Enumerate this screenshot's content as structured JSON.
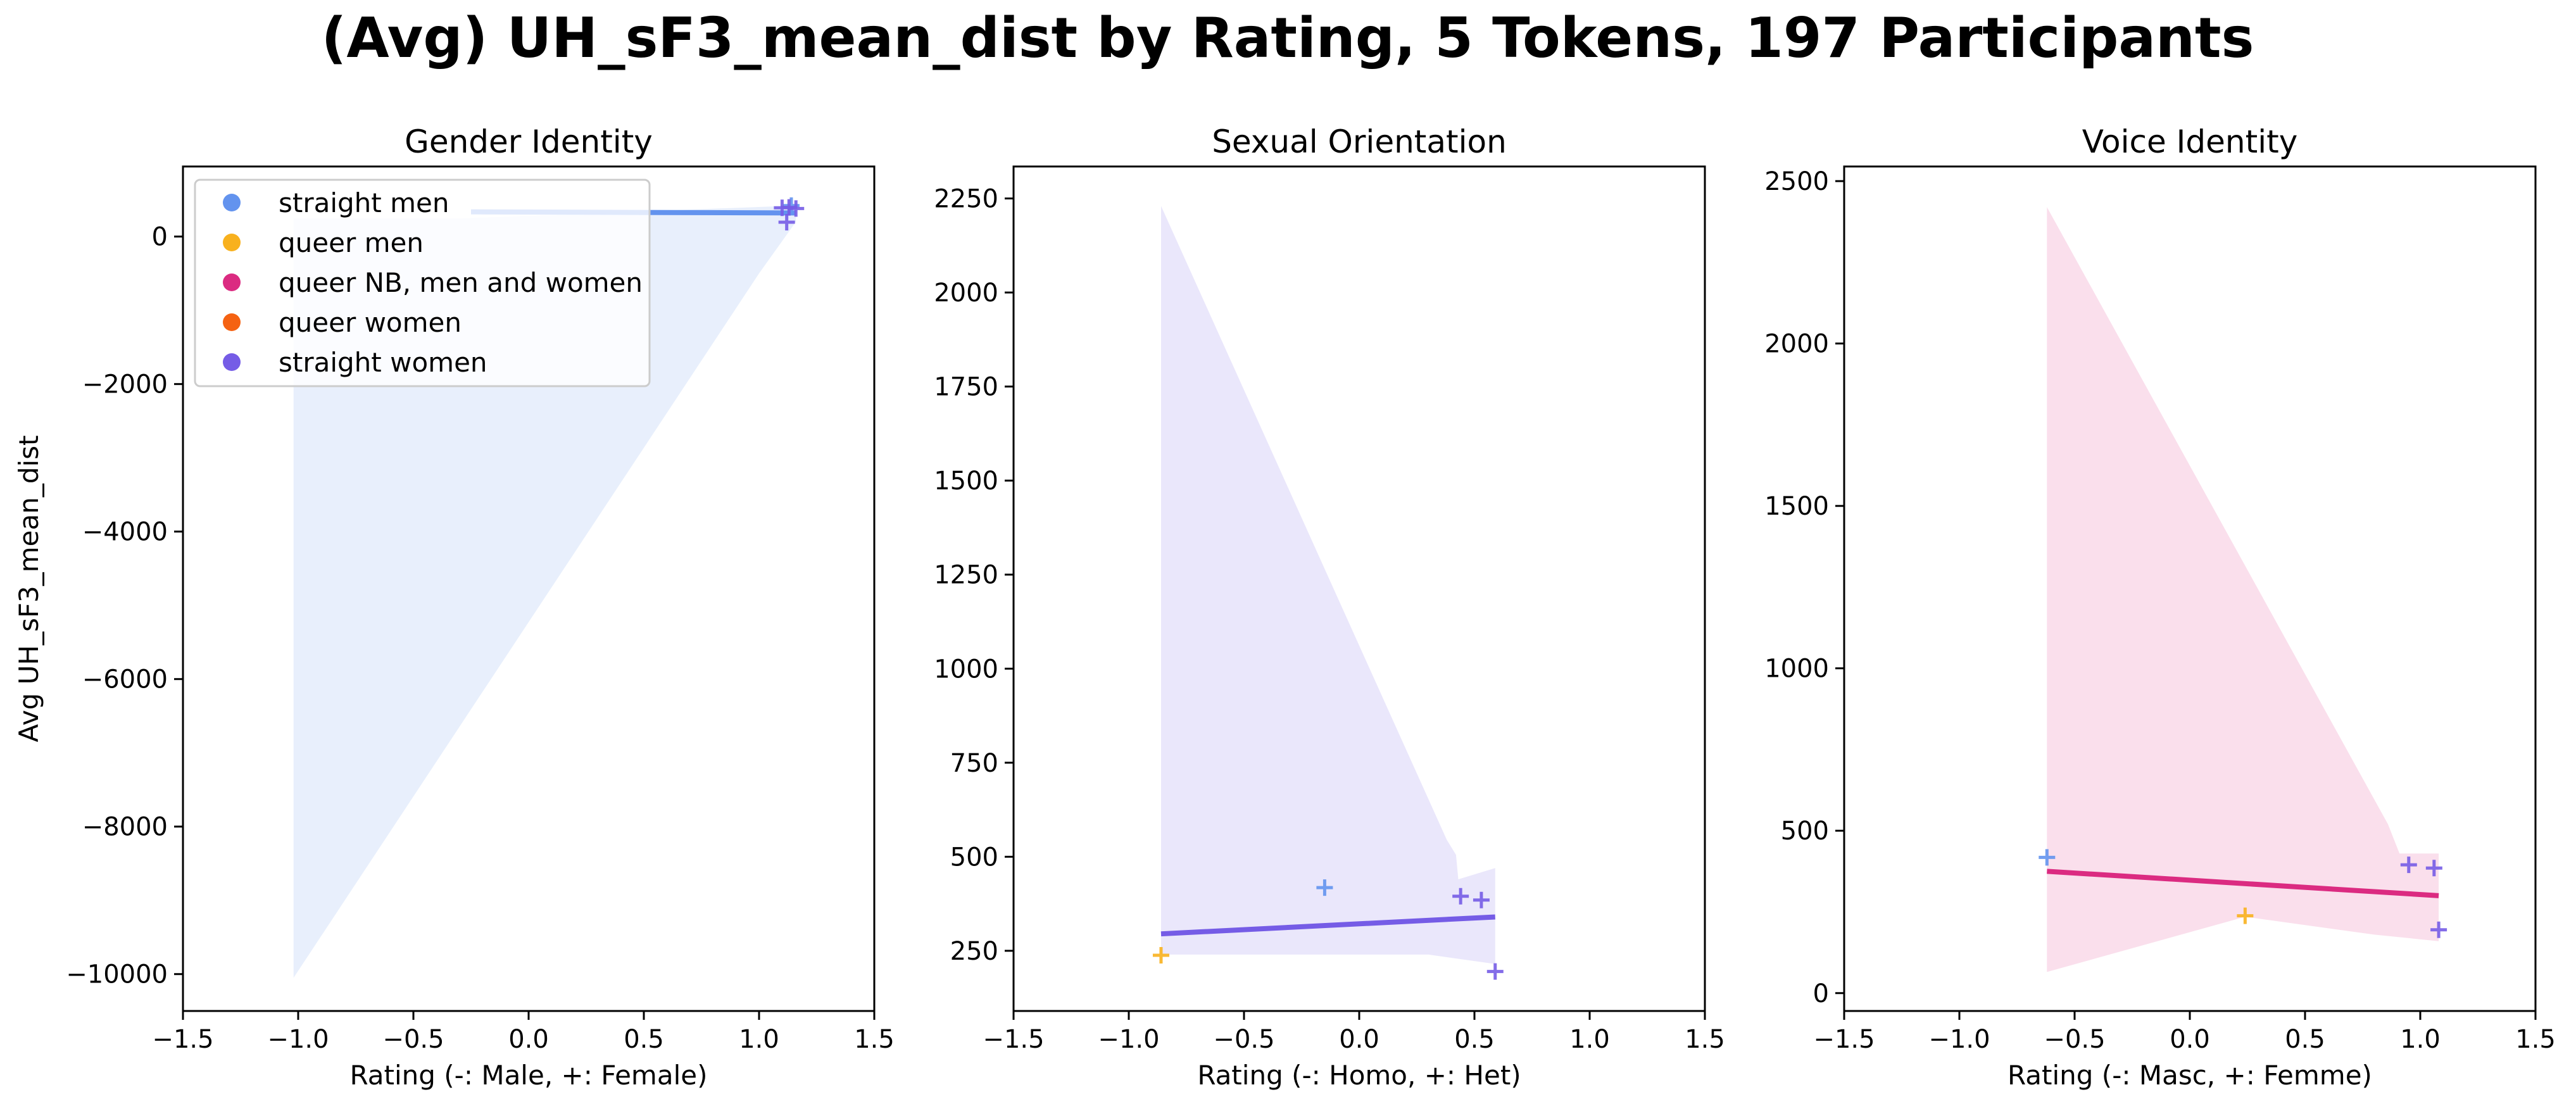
{
  "figure": {
    "title": "(Avg) UH_sF3_mean_dist by Rating, 5 Tokens, 197 Participants"
  },
  "legend": {
    "placement": "upper-left of first panel",
    "entries": [
      {
        "label": "straight men",
        "color": "#6393ee"
      },
      {
        "label": "queer men",
        "color": "#f8b11e"
      },
      {
        "label": "queer NB, men and women",
        "color": "#db2b81"
      },
      {
        "label": "queer women",
        "color": "#f56212"
      },
      {
        "label": "straight women",
        "color": "#755ce6"
      }
    ]
  },
  "chart_data": [
    {
      "type": "scatter",
      "title": "Gender Identity",
      "xlabel": "Rating (-: Male, +: Female)",
      "ylabel": "Avg UH_sF3_mean_dist",
      "xlim": [
        -1.5,
        1.5
      ],
      "ylim": [
        -10500,
        950
      ],
      "xticks": [
        -1.5,
        -1.0,
        -0.5,
        0.0,
        0.5,
        1.0,
        1.5
      ],
      "xtick_labels": [
        "−1.5",
        "−1.0",
        "−0.5",
        "0.0",
        "0.5",
        "1.0",
        "1.5"
      ],
      "yticks": [
        0,
        -2000,
        -4000,
        -6000,
        -8000,
        -10000
      ],
      "ytick_labels": [
        "0",
        "−2000",
        "−4000",
        "−6000",
        "−8000",
        "−10000"
      ],
      "grid": false,
      "points": [
        {
          "x": 1.14,
          "y": 420,
          "group": "straight men",
          "color": "#6393ee"
        },
        {
          "x": 1.1,
          "y": 390,
          "group": "straight women",
          "color": "#755ce6"
        },
        {
          "x": 1.13,
          "y": 395,
          "group": "straight women",
          "color": "#755ce6"
        },
        {
          "x": 1.12,
          "y": 195,
          "group": "straight women",
          "color": "#755ce6"
        },
        {
          "x": 1.16,
          "y": 380,
          "group": "straight women",
          "color": "#755ce6"
        }
      ],
      "fit_line": {
        "x": [
          -0.25,
          1.16
        ],
        "y": [
          335,
          320
        ],
        "color": "#6393ee"
      },
      "confidence_band": {
        "color": "#6393ee",
        "upper": [
          [
            -1.02,
            245
          ],
          [
            -0.3,
            245
          ],
          [
            1.16,
            420
          ]
        ],
        "lower": [
          [
            -1.02,
            -10050
          ],
          [
            1.0,
            -500
          ],
          [
            1.16,
            200
          ]
        ]
      }
    },
    {
      "type": "scatter",
      "title": "Sexual Orientation",
      "xlabel": "Rating (-: Homo, +: Het)",
      "ylabel": "",
      "xlim": [
        -1.5,
        1.5
      ],
      "ylim": [
        90,
        2335
      ],
      "xticks": [
        -1.5,
        -1.0,
        -0.5,
        0.0,
        0.5,
        1.0,
        1.5
      ],
      "xtick_labels": [
        "−1.5",
        "−1.0",
        "−0.5",
        "0.0",
        "0.5",
        "1.0",
        "1.5"
      ],
      "yticks": [
        250,
        500,
        750,
        1000,
        1250,
        1500,
        1750,
        2000,
        2250
      ],
      "ytick_labels": [
        "250",
        "500",
        "750",
        "1000",
        "1250",
        "1500",
        "1750",
        "2000",
        "2250"
      ],
      "grid": false,
      "points": [
        {
          "x": -0.86,
          "y": 238,
          "group": "queer men",
          "color": "#f8b11e"
        },
        {
          "x": -0.15,
          "y": 418,
          "group": "straight men",
          "color": "#6393ee"
        },
        {
          "x": 0.44,
          "y": 395,
          "group": "straight women",
          "color": "#755ce6"
        },
        {
          "x": 0.53,
          "y": 385,
          "group": "straight women",
          "color": "#755ce6"
        },
        {
          "x": 0.59,
          "y": 195,
          "group": "straight women",
          "color": "#755ce6"
        }
      ],
      "fit_line": {
        "x": [
          -0.86,
          0.59
        ],
        "y": [
          295,
          340
        ],
        "color": "#755ce6"
      },
      "confidence_band": {
        "color": "#755ce6",
        "upper": [
          [
            -0.86,
            2230
          ],
          [
            0.38,
            545
          ],
          [
            0.42,
            505
          ],
          [
            0.43,
            440
          ],
          [
            0.59,
            470
          ]
        ],
        "lower": [
          [
            -0.86,
            240
          ],
          [
            -0.3,
            240
          ],
          [
            0.3,
            240
          ],
          [
            0.59,
            215
          ]
        ]
      }
    },
    {
      "type": "scatter",
      "title": "Voice Identity",
      "xlabel": "Rating (-: Masc, +: Femme)",
      "ylabel": "",
      "xlim": [
        -1.5,
        1.5
      ],
      "ylim": [
        -55,
        2545
      ],
      "xticks": [
        -1.5,
        -1.0,
        -0.5,
        0.0,
        0.5,
        1.0,
        1.5
      ],
      "xtick_labels": [
        "−1.5",
        "−1.0",
        "−0.5",
        "0.0",
        "0.5",
        "1.0",
        "1.5"
      ],
      "yticks": [
        0,
        500,
        1000,
        1500,
        2000,
        2500
      ],
      "ytick_labels": [
        "0",
        "500",
        "1000",
        "1500",
        "2000",
        "2500"
      ],
      "grid": false,
      "points": [
        {
          "x": -0.62,
          "y": 418,
          "group": "straight men",
          "color": "#6393ee"
        },
        {
          "x": 0.24,
          "y": 238,
          "group": "queer men",
          "color": "#f8b11e"
        },
        {
          "x": 0.95,
          "y": 395,
          "group": "straight women",
          "color": "#755ce6"
        },
        {
          "x": 1.06,
          "y": 385,
          "group": "straight women",
          "color": "#755ce6"
        },
        {
          "x": 1.08,
          "y": 195,
          "group": "straight women",
          "color": "#755ce6"
        }
      ],
      "fit_line": {
        "x": [
          -0.62,
          1.08
        ],
        "y": [
          375,
          300
        ],
        "color": "#db2b81"
      },
      "confidence_band": {
        "color": "#db2b81",
        "upper": [
          [
            -0.62,
            2420
          ],
          [
            0.86,
            520
          ],
          [
            0.91,
            430
          ],
          [
            1.08,
            430
          ]
        ],
        "lower": [
          [
            -0.62,
            65
          ],
          [
            0.24,
            235
          ],
          [
            0.8,
            180
          ],
          [
            1.08,
            160
          ]
        ]
      }
    }
  ]
}
